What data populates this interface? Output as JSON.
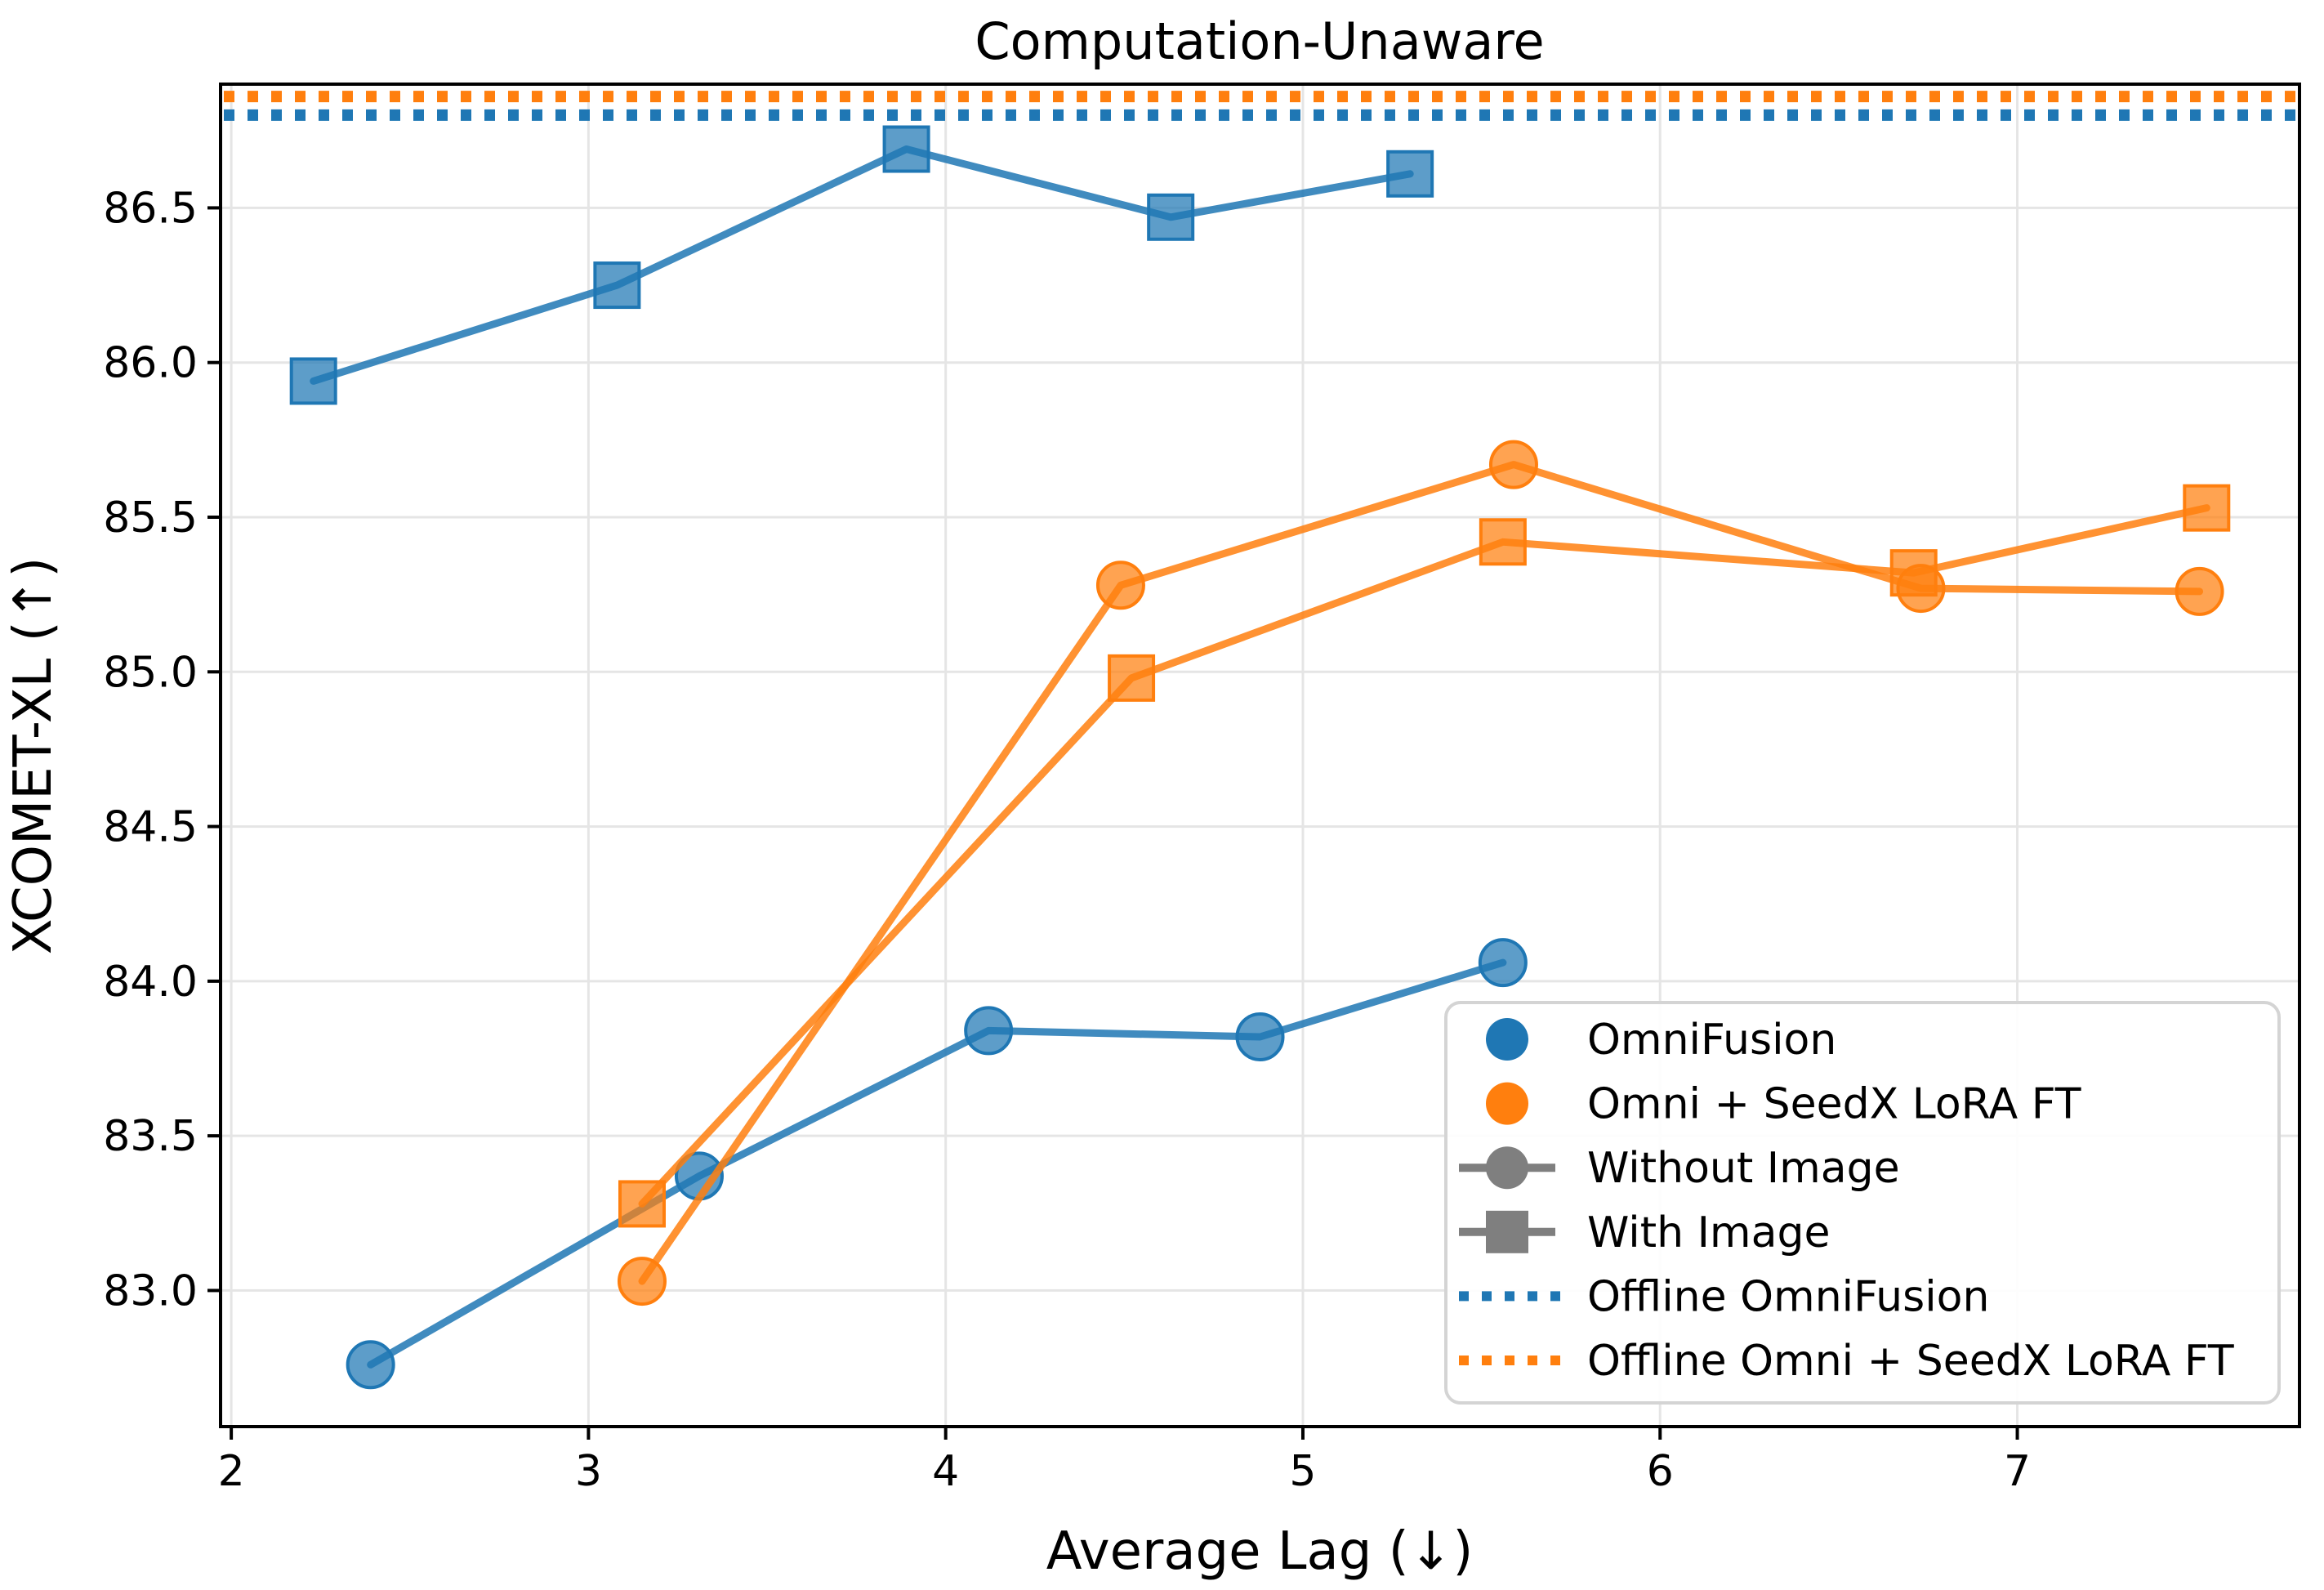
{
  "title": "Computation-Unaware",
  "chart_data": {
    "type": "line",
    "title": "Computation-Unaware",
    "xlabel": "Average Lag (↓)",
    "ylabel": "XCOMET-XL (↑)",
    "xlim": [
      1.97,
      7.79
    ],
    "ylim": [
      82.56,
      86.9
    ],
    "x_ticks": [
      2,
      3,
      4,
      5,
      6,
      7
    ],
    "y_ticks": [
      83.0,
      83.5,
      84.0,
      84.5,
      85.0,
      85.5,
      86.0,
      86.5
    ],
    "grid": true,
    "legend_position": "lower right",
    "series": [
      {
        "name": "OmniFusion - With Image",
        "color": "#1f77b4",
        "marker": "square",
        "style": "solid",
        "points": [
          [
            2.23,
            85.94
          ],
          [
            3.08,
            86.25
          ],
          [
            3.89,
            86.69
          ],
          [
            4.63,
            86.47
          ],
          [
            5.3,
            86.61
          ]
        ]
      },
      {
        "name": "OmniFusion - Without Image",
        "color": "#1f77b4",
        "marker": "circle",
        "style": "solid",
        "points": [
          [
            2.39,
            82.76
          ],
          [
            3.31,
            83.37
          ],
          [
            4.12,
            83.84
          ],
          [
            4.88,
            83.82
          ],
          [
            5.56,
            84.06
          ]
        ]
      },
      {
        "name": "Omni + SeedX LoRA FT - Without Image",
        "color": "#ff7f0e",
        "marker": "circle",
        "style": "solid",
        "points": [
          [
            3.15,
            83.03
          ],
          [
            4.49,
            85.28
          ],
          [
            5.59,
            85.67
          ],
          [
            6.73,
            85.27
          ],
          [
            7.51,
            85.26
          ]
        ]
      },
      {
        "name": "Omni + SeedX LoRA FT - With Image",
        "color": "#ff7f0e",
        "marker": "square",
        "style": "solid",
        "points": [
          [
            3.15,
            83.28
          ],
          [
            4.52,
            84.98
          ],
          [
            5.56,
            85.42
          ],
          [
            6.71,
            85.32
          ],
          [
            7.53,
            85.53
          ]
        ]
      }
    ],
    "hlines": [
      {
        "name": "Offline Omni + SeedX LoRA FT",
        "y": 86.86,
        "color": "#ff7f0e",
        "style": "dotted"
      },
      {
        "name": "Offline OmniFusion",
        "y": 86.8,
        "color": "#1f77b4",
        "style": "dotted"
      }
    ],
    "legend": [
      {
        "label": "OmniFusion",
        "swatch": "circle",
        "color": "#1f77b4"
      },
      {
        "label": "Omni + SeedX LoRA FT",
        "swatch": "circle",
        "color": "#ff7f0e"
      },
      {
        "label": "Without Image",
        "swatch": "line-circle",
        "color": "#7f7f7f"
      },
      {
        "label": "With Image",
        "swatch": "line-square",
        "color": "#7f7f7f"
      },
      {
        "label": "Offline OmniFusion",
        "swatch": "dotted",
        "color": "#1f77b4"
      },
      {
        "label": "Offline Omni + SeedX LoRA FT",
        "swatch": "dotted",
        "color": "#ff7f0e"
      }
    ],
    "colors": {
      "blue": "#1f77b4",
      "orange": "#ff7f0e",
      "gray": "#7f7f7f",
      "grid": "#e5e5e5",
      "frame": "#000000",
      "legend_border": "#d4d4d4",
      "background": "#ffffff"
    }
  }
}
